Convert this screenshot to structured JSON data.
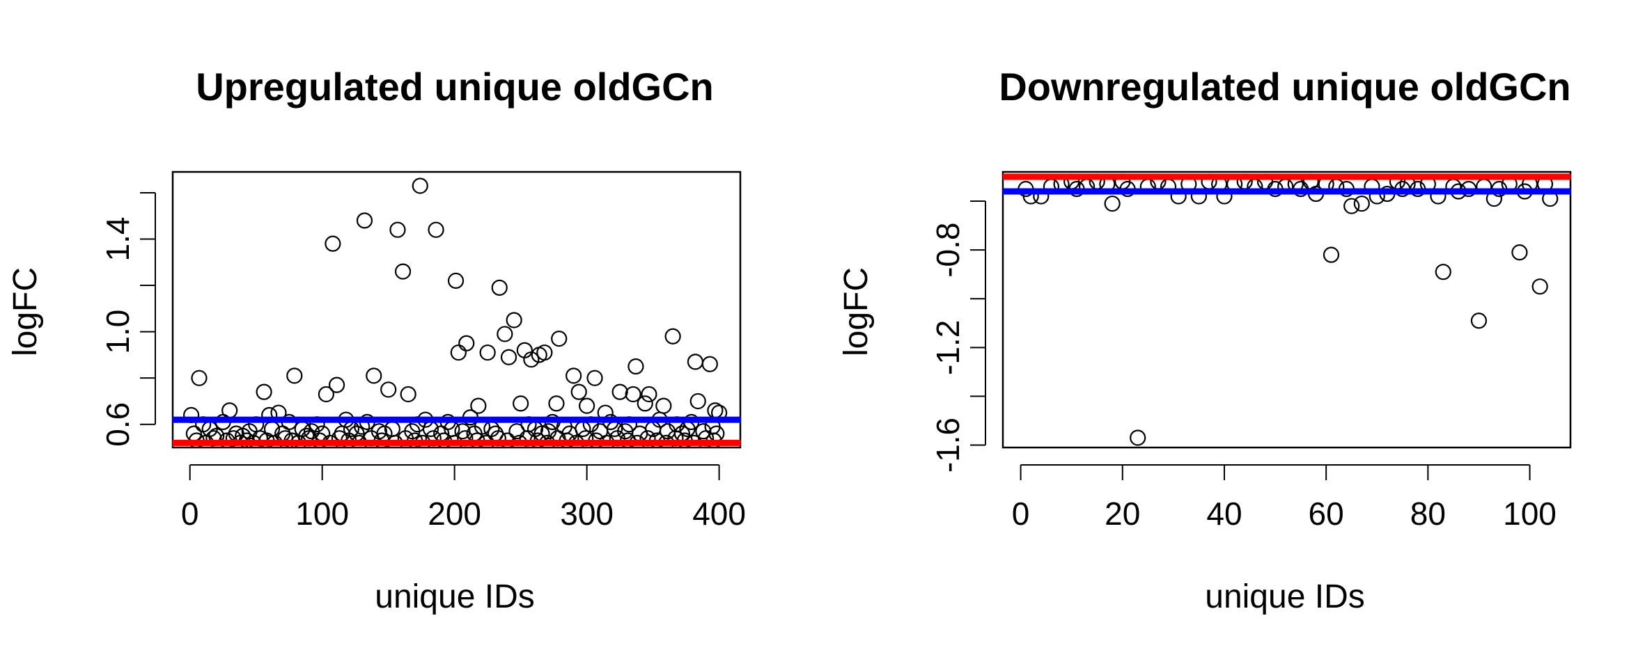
{
  "colors": {
    "upper_line": "#0000ff",
    "lower_line": "#ff0000",
    "points": "#000000"
  },
  "chart_data": [
    {
      "type": "scatter",
      "title": "Upregulated unique oldGCn",
      "xlabel": "unique IDs",
      "ylabel": "logFC",
      "xlim": [
        -13,
        416
      ],
      "ylim": [
        0.5,
        1.69
      ],
      "x_ticks": [
        0,
        100,
        200,
        300,
        400
      ],
      "x_tick_labels": [
        "0",
        "100",
        "200",
        "300",
        "400"
      ],
      "y_ticks": [
        0.6,
        0.8,
        1.0,
        1.2,
        1.4,
        1.6
      ],
      "y_tick_labels": [
        "0.6",
        "",
        "1.0",
        "",
        "1.4",
        ""
      ],
      "hlines": [
        {
          "y": 0.62,
          "color": "#0000ff"
        },
        {
          "y": 0.52,
          "color": "#ff0000"
        }
      ],
      "points": [
        [
          1,
          0.64
        ],
        [
          7,
          0.8
        ],
        [
          56,
          0.74
        ],
        [
          67,
          0.65
        ],
        [
          79,
          0.81
        ],
        [
          103,
          0.73
        ],
        [
          108,
          1.38
        ],
        [
          111,
          0.77
        ],
        [
          132,
          1.48
        ],
        [
          139,
          0.81
        ],
        [
          150,
          0.75
        ],
        [
          157,
          1.44
        ],
        [
          161,
          1.26
        ],
        [
          165,
          0.73
        ],
        [
          174,
          1.63
        ],
        [
          186,
          1.44
        ],
        [
          201,
          1.22
        ],
        [
          203,
          0.91
        ],
        [
          209,
          0.95
        ],
        [
          218,
          0.68
        ],
        [
          225,
          0.91
        ],
        [
          234,
          1.19
        ],
        [
          238,
          0.99
        ],
        [
          241,
          0.89
        ],
        [
          245,
          1.05
        ],
        [
          250,
          0.69
        ],
        [
          253,
          0.92
        ],
        [
          258,
          0.88
        ],
        [
          264,
          0.9
        ],
        [
          268,
          0.91
        ],
        [
          277,
          0.69
        ],
        [
          279,
          0.97
        ],
        [
          290,
          0.81
        ],
        [
          294,
          0.74
        ],
        [
          300,
          0.68
        ],
        [
          306,
          0.8
        ],
        [
          314,
          0.65
        ],
        [
          325,
          0.74
        ],
        [
          335,
          0.73
        ],
        [
          337,
          0.85
        ],
        [
          344,
          0.69
        ],
        [
          347,
          0.73
        ],
        [
          358,
          0.68
        ],
        [
          365,
          0.98
        ],
        [
          382,
          0.87
        ],
        [
          384,
          0.7
        ],
        [
          393,
          0.86
        ],
        [
          397,
          0.66
        ],
        [
          400,
          0.65
        ],
        [
          3,
          0.56
        ],
        [
          10,
          0.6
        ],
        [
          15,
          0.58
        ],
        [
          20,
          0.55
        ],
        [
          25,
          0.61
        ],
        [
          30,
          0.66
        ],
        [
          35,
          0.56
        ],
        [
          40,
          0.55
        ],
        [
          45,
          0.57
        ],
        [
          50,
          0.6
        ],
        [
          60,
          0.64
        ],
        [
          62,
          0.58
        ],
        [
          70,
          0.56
        ],
        [
          75,
          0.61
        ],
        [
          85,
          0.58
        ],
        [
          88,
          0.55
        ],
        [
          92,
          0.57
        ],
        [
          96,
          0.6
        ],
        [
          100,
          0.56
        ],
        [
          115,
          0.56
        ],
        [
          118,
          0.62
        ],
        [
          122,
          0.58
        ],
        [
          126,
          0.56
        ],
        [
          130,
          0.59
        ],
        [
          134,
          0.61
        ],
        [
          143,
          0.57
        ],
        [
          147,
          0.56
        ],
        [
          153,
          0.58
        ],
        [
          168,
          0.57
        ],
        [
          172,
          0.6
        ],
        [
          178,
          0.62
        ],
        [
          182,
          0.58
        ],
        [
          190,
          0.56
        ],
        [
          195,
          0.61
        ],
        [
          198,
          0.58
        ],
        [
          206,
          0.57
        ],
        [
          212,
          0.63
        ],
        [
          215,
          0.56
        ],
        [
          221,
          0.59
        ],
        [
          228,
          0.58
        ],
        [
          231,
          0.56
        ],
        [
          247,
          0.57
        ],
        [
          256,
          0.6
        ],
        [
          261,
          0.58
        ],
        [
          266,
          0.56
        ],
        [
          271,
          0.57
        ],
        [
          274,
          0.61
        ],
        [
          283,
          0.59
        ],
        [
          287,
          0.56
        ],
        [
          297,
          0.58
        ],
        [
          303,
          0.6
        ],
        [
          310,
          0.57
        ],
        [
          318,
          0.61
        ],
        [
          321,
          0.58
        ],
        [
          329,
          0.57
        ],
        [
          332,
          0.6
        ],
        [
          340,
          0.56
        ],
        [
          350,
          0.58
        ],
        [
          355,
          0.62
        ],
        [
          361,
          0.57
        ],
        [
          368,
          0.6
        ],
        [
          372,
          0.56
        ],
        [
          376,
          0.58
        ],
        [
          379,
          0.61
        ],
        [
          388,
          0.57
        ],
        [
          395,
          0.59
        ],
        [
          398,
          0.56
        ],
        [
          5,
          0.53
        ],
        [
          12,
          0.52
        ],
        [
          18,
          0.54
        ],
        [
          28,
          0.53
        ],
        [
          33,
          0.54
        ],
        [
          38,
          0.52
        ],
        [
          43,
          0.53
        ],
        [
          48,
          0.52
        ],
        [
          53,
          0.54
        ],
        [
          58,
          0.53
        ],
        [
          64,
          0.52
        ],
        [
          72,
          0.54
        ],
        [
          77,
          0.53
        ],
        [
          82,
          0.52
        ],
        [
          90,
          0.54
        ],
        [
          98,
          0.53
        ],
        [
          106,
          0.52
        ],
        [
          113,
          0.54
        ],
        [
          120,
          0.53
        ],
        [
          128,
          0.52
        ],
        [
          137,
          0.54
        ],
        [
          145,
          0.53
        ],
        [
          155,
          0.52
        ],
        [
          163,
          0.54
        ],
        [
          170,
          0.53
        ],
        [
          176,
          0.52
        ],
        [
          184,
          0.54
        ],
        [
          192,
          0.53
        ],
        [
          200,
          0.52
        ],
        [
          208,
          0.54
        ],
        [
          217,
          0.53
        ],
        [
          224,
          0.52
        ],
        [
          233,
          0.54
        ],
        [
          240,
          0.53
        ],
        [
          249,
          0.52
        ],
        [
          255,
          0.54
        ],
        [
          263,
          0.53
        ],
        [
          270,
          0.52
        ],
        [
          278,
          0.54
        ],
        [
          285,
          0.53
        ],
        [
          292,
          0.52
        ],
        [
          299,
          0.54
        ],
        [
          307,
          0.53
        ],
        [
          315,
          0.52
        ],
        [
          323,
          0.54
        ],
        [
          331,
          0.53
        ],
        [
          338,
          0.52
        ],
        [
          346,
          0.54
        ],
        [
          353,
          0.53
        ],
        [
          360,
          0.52
        ],
        [
          367,
          0.54
        ],
        [
          374,
          0.53
        ],
        [
          381,
          0.52
        ],
        [
          390,
          0.54
        ],
        [
          396,
          0.53
        ]
      ]
    },
    {
      "type": "scatter",
      "title": "Downregulated unique oldGCn",
      "xlabel": "unique IDs",
      "ylabel": "logFC",
      "xlim": [
        -3.5,
        108
      ],
      "ylim": [
        -1.61,
        -0.48
      ],
      "x_ticks": [
        0,
        20,
        40,
        60,
        80,
        100
      ],
      "x_tick_labels": [
        "0",
        "20",
        "40",
        "60",
        "80",
        "100"
      ],
      "y_ticks": [
        -1.6,
        -1.4,
        -1.2,
        -1.0,
        -0.8,
        -0.6
      ],
      "y_tick_labels": [
        "-1.6",
        "",
        "-1.2",
        "",
        "-0.8",
        ""
      ],
      "hlines": [
        {
          "y": -0.5,
          "color": "#ff0000"
        },
        {
          "y": -0.56,
          "color": "#0000ff"
        }
      ],
      "points": [
        [
          1,
          -0.55
        ],
        [
          2,
          -0.58
        ],
        [
          4,
          -0.58
        ],
        [
          6,
          -0.54
        ],
        [
          8,
          -0.53
        ],
        [
          10,
          -0.52
        ],
        [
          11,
          -0.55
        ],
        [
          13,
          -0.54
        ],
        [
          15,
          -0.52
        ],
        [
          17,
          -0.53
        ],
        [
          18,
          -0.61
        ],
        [
          20,
          -0.52
        ],
        [
          21,
          -0.55
        ],
        [
          23,
          -1.57
        ],
        [
          25,
          -0.54
        ],
        [
          27,
          -0.52
        ],
        [
          29,
          -0.54
        ],
        [
          31,
          -0.58
        ],
        [
          33,
          -0.53
        ],
        [
          35,
          -0.58
        ],
        [
          37,
          -0.52
        ],
        [
          39,
          -0.53
        ],
        [
          40,
          -0.58
        ],
        [
          42,
          -0.53
        ],
        [
          44,
          -0.52
        ],
        [
          46,
          -0.54
        ],
        [
          48,
          -0.52
        ],
        [
          50,
          -0.55
        ],
        [
          52,
          -0.54
        ],
        [
          54,
          -0.53
        ],
        [
          55,
          -0.55
        ],
        [
          57,
          -0.52
        ],
        [
          58,
          -0.57
        ],
        [
          60,
          -0.53
        ],
        [
          61,
          -0.82
        ],
        [
          62,
          -0.54
        ],
        [
          64,
          -0.55
        ],
        [
          65,
          -0.62
        ],
        [
          67,
          -0.61
        ],
        [
          69,
          -0.54
        ],
        [
          70,
          -0.58
        ],
        [
          72,
          -0.57
        ],
        [
          74,
          -0.52
        ],
        [
          75,
          -0.55
        ],
        [
          76,
          -0.53
        ],
        [
          78,
          -0.55
        ],
        [
          80,
          -0.53
        ],
        [
          82,
          -0.58
        ],
        [
          83,
          -0.89
        ],
        [
          85,
          -0.54
        ],
        [
          86,
          -0.56
        ],
        [
          88,
          -0.55
        ],
        [
          90,
          -1.09
        ],
        [
          91,
          -0.54
        ],
        [
          93,
          -0.59
        ],
        [
          94,
          -0.55
        ],
        [
          96,
          -0.53
        ],
        [
          98,
          -0.81
        ],
        [
          99,
          -0.56
        ],
        [
          100,
          -0.53
        ],
        [
          102,
          -0.95
        ],
        [
          103,
          -0.53
        ],
        [
          104,
          -0.59
        ]
      ]
    }
  ]
}
